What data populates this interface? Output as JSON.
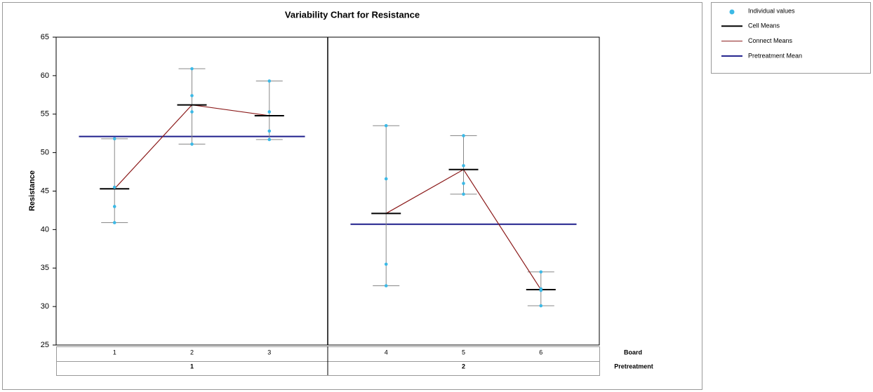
{
  "chart_data": {
    "type": "variability",
    "title": "Variability Chart for Resistance",
    "y_label": "Resistance",
    "ylim": [
      25,
      65
    ],
    "yticks": [
      25,
      30,
      35,
      40,
      45,
      50,
      55,
      60,
      65
    ],
    "factor_labels": [
      "Board",
      "Pretreatment"
    ],
    "groups": [
      {
        "label": "1",
        "mean": 52.1,
        "boards": [
          {
            "label": "1",
            "values": [
              51.8,
              45.5,
              43.0,
              40.9
            ],
            "mean": 45.3
          },
          {
            "label": "2",
            "values": [
              60.9,
              57.4,
              55.3,
              51.1
            ],
            "mean": 56.2
          },
          {
            "label": "3",
            "values": [
              59.3,
              55.3,
              52.8,
              51.7
            ],
            "mean": 54.8
          }
        ]
      },
      {
        "label": "2",
        "mean": 40.7,
        "boards": [
          {
            "label": "4",
            "values": [
              53.5,
              46.6,
              35.5,
              32.7
            ],
            "mean": 42.1
          },
          {
            "label": "5",
            "values": [
              52.2,
              48.3,
              46.0,
              44.6
            ],
            "mean": 47.8
          },
          {
            "label": "6",
            "values": [
              34.5,
              32.3,
              32.1,
              30.1
            ],
            "mean": 32.2
          }
        ]
      }
    ],
    "legend": [
      {
        "name": "Individual values",
        "color": "#3cb9e6",
        "kind": "point"
      },
      {
        "name": "Cell Means",
        "color": "#000000",
        "kind": "line"
      },
      {
        "name": "Connect Means",
        "color": "#8b1a1a",
        "kind": "line"
      },
      {
        "name": "Pretreatment Mean",
        "color": "#1f1f8c",
        "kind": "line"
      }
    ]
  }
}
